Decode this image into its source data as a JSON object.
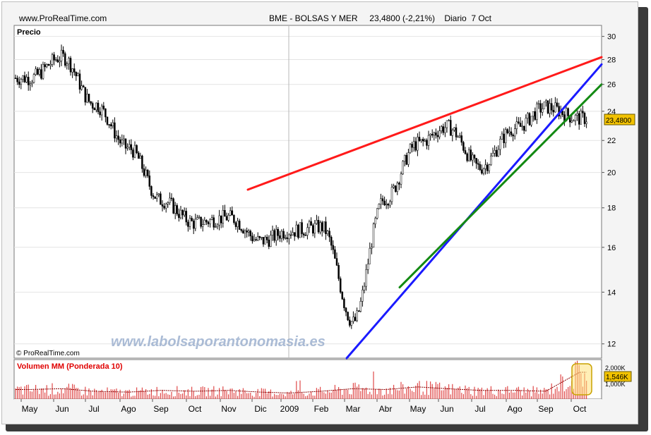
{
  "header": {
    "site": "www.ProRealTime.com",
    "instrument_line": "BME - BOLSAS Y MER     23,4800 (-2,21%)    Diario  7 Oct"
  },
  "watermark": "www.labolsaporantonomasia.es",
  "copyright": "© ProRealTime.com",
  "price_panel": {
    "label": "Precio",
    "last_price_badge": "23,4800",
    "y_ticks": [
      "30",
      "28",
      "26",
      "24",
      "22",
      "20",
      "18",
      "16",
      "14",
      "12"
    ]
  },
  "volume_panel": {
    "label": "Volumen MM (Ponderada 10)",
    "tick_top": "2,000K",
    "tick_bottom": "1,000K",
    "last_value_badge": "1,546K"
  },
  "x_axis": {
    "labels": [
      "May",
      "Jun",
      "Jul",
      "Ago",
      "Sep",
      "Oct",
      "Nov",
      "Dic",
      "2009",
      "Feb",
      "Mar",
      "Abr",
      "May",
      "Jun",
      "Jul",
      "Ago",
      "Sep",
      "Oct"
    ]
  },
  "colors": {
    "resistance": "#ff1a1a",
    "support_fast": "#1a1aff",
    "support_slow": "#138a13",
    "candle": "#000000",
    "volume_bar": "#e04a4a",
    "badge": "#f2c200"
  },
  "chart_data": {
    "type": "line",
    "title": "BME - BOLSAS Y MER",
    "ylabel": "Precio",
    "yscale": "log",
    "ylim": [
      11.5,
      31
    ],
    "last_close": 23.48,
    "change_pct": -2.21,
    "x": [
      "May",
      "Jun",
      "Jul",
      "Ago",
      "Sep",
      "Oct",
      "Nov",
      "Dic",
      "2009",
      "Feb",
      "Mar",
      "Abr",
      "May",
      "Jun",
      "Jul",
      "Ago",
      "Sep",
      "Oct"
    ],
    "series": [
      {
        "values": [
          26.5,
          28.2,
          24.5,
          21.5,
          18.4,
          17.2,
          17.5,
          16.3,
          16.8,
          17.0,
          12.8,
          18.5,
          21.8,
          22.9,
          20.3,
          22.8,
          24.3,
          23.5
        ]
      }
    ],
    "trendlines": [
      {
        "from": [
          "Dic",
          19.0
        ],
        "to": [
          "Oct",
          28.2
        ]
      },
      {
        "from": [
          "Mar",
          11.5
        ],
        "to": [
          "Oct",
          27.6
        ]
      },
      {
        "from": [
          "Abr",
          14.2
        ],
        "to": [
          "Oct",
          26.0
        ]
      }
    ],
    "volume": {
      "ylim": [
        0,
        2.2
      ],
      "values": [
        0.55,
        0.6,
        0.45,
        0.4,
        0.5,
        0.45,
        0.5,
        0.4,
        0.35,
        0.45,
        0.6,
        0.55,
        0.7,
        0.6,
        0.5,
        0.5,
        0.45,
        1.55
      ]
    }
  }
}
